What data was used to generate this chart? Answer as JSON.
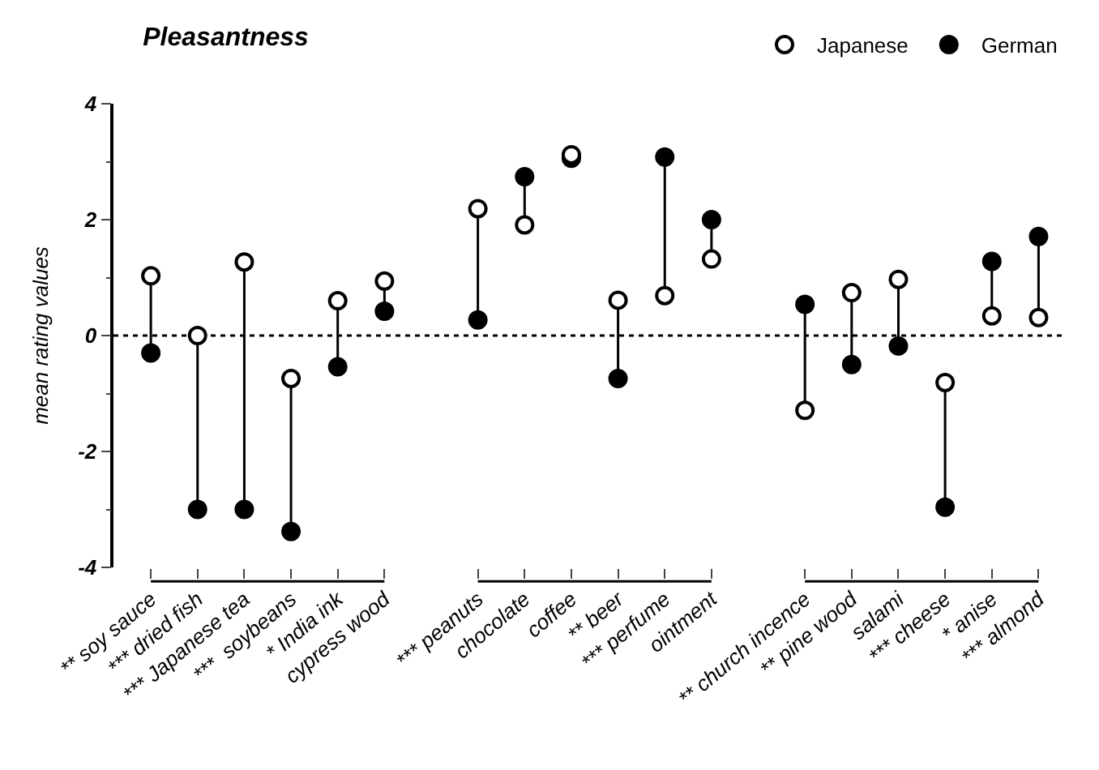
{
  "chart_data": {
    "type": "scatter",
    "title": "Pleasantness",
    "ylabel": "mean rating values",
    "categories": [
      "** soy sauce",
      "*** dried fish",
      "*** Japanese tea",
      "***  soybeans",
      "* India ink",
      "cypress wood",
      null,
      "*** peanuts",
      "chocolate",
      "coffee",
      "** beer",
      "*** perfume",
      "ointment",
      null,
      "** church incence",
      "** pine wood",
      "salami",
      "*** cheese",
      "* anise",
      "*** almond"
    ],
    "series": [
      {
        "name": "Japanese",
        "color": "#ffffff",
        "values": [
          1.03,
          0,
          1.27,
          -0.74,
          0.6,
          0.94,
          null,
          2.19,
          1.91,
          3.12,
          0.61,
          0.69,
          1.32,
          null,
          -1.29,
          0.74,
          0.97,
          -0.81,
          0.34,
          0.31
        ]
      },
      {
        "name": "German",
        "color": "#000000",
        "values": [
          -0.3,
          -3.0,
          -3.0,
          -3.38,
          -0.54,
          0.42,
          null,
          0.27,
          2.74,
          3.06,
          -0.74,
          3.08,
          2.0,
          null,
          0.54,
          -0.5,
          -0.18,
          -2.96,
          1.28,
          1.71
        ]
      }
    ],
    "ylim": [
      -4,
      4
    ],
    "yticks": [
      4,
      2,
      0,
      -2,
      -4
    ],
    "ref_lines": [
      {
        "axis": "y",
        "value": 0,
        "line_style": "dotted",
        "color": "#000000"
      }
    ],
    "marker": "circle",
    "legend": "top right",
    "grid": false
  }
}
